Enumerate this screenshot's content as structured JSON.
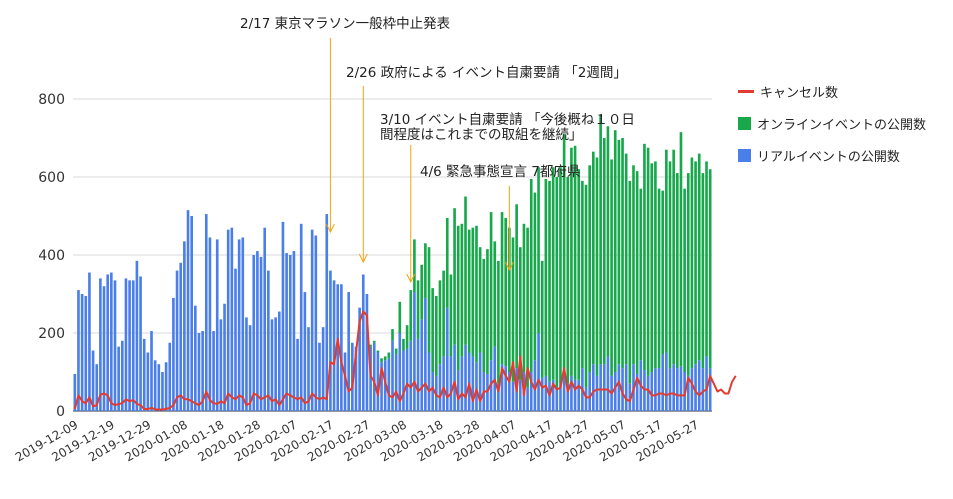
{
  "chart_data": {
    "type": "bar",
    "stacked": true,
    "y_axis": {
      "ylim": [
        0,
        900
      ],
      "ticks": [
        0,
        200,
        400,
        600,
        800
      ]
    },
    "x_axis": {
      "start_date": "2019-12-09",
      "tick_labels": [
        "2019-12-09",
        "2019-12-19",
        "2019-12-29",
        "2020-01-08",
        "2020-01-18",
        "2020-01-28",
        "2020-02-07",
        "2020-02-17",
        "2020-02-27",
        "2020-03-08",
        "2020-03-18",
        "2020-03-28",
        "2020-04-07",
        "2020-04-17",
        "2020-04-27",
        "2020-05-07",
        "2020-05-17",
        "2020-05-27"
      ]
    },
    "grid": true,
    "legend_placement": "right",
    "series": [
      {
        "name": "リアルイベントの公開数",
        "kind": "bar",
        "color": "#4a7ee8",
        "values": [
          95,
          310,
          300,
          295,
          355,
          155,
          120,
          340,
          320,
          350,
          355,
          335,
          165,
          180,
          340,
          335,
          335,
          385,
          345,
          185,
          150,
          205,
          130,
          120,
          100,
          125,
          175,
          290,
          360,
          380,
          435,
          515,
          500,
          270,
          200,
          205,
          505,
          445,
          205,
          440,
          235,
          275,
          465,
          470,
          365,
          440,
          445,
          240,
          220,
          400,
          410,
          395,
          470,
          360,
          235,
          240,
          255,
          485,
          405,
          400,
          410,
          185,
          480,
          305,
          215,
          465,
          450,
          175,
          215,
          505,
          360,
          335,
          325,
          325,
          150,
          305,
          175,
          165,
          265,
          350,
          300,
          165,
          175,
          150,
          125,
          130,
          135,
          180,
          145,
          200,
          155,
          160,
          180,
          305,
          185,
          235,
          290,
          150,
          100,
          90,
          120,
          140,
          265,
          140,
          170,
          105,
          140,
          170,
          150,
          140,
          125,
          150,
          100,
          95,
          130,
          165,
          70,
          120,
          115,
          100,
          75,
          110,
          80,
          100,
          60,
          100,
          130,
          200,
          85,
          90,
          75,
          80,
          60,
          70,
          110,
          70,
          90,
          80,
          80,
          110,
          60,
          100,
          120,
          90,
          120,
          120,
          140,
          90,
          100,
          120,
          110,
          120,
          70,
          120,
          95,
          130,
          105,
          90,
          100,
          110,
          110,
          145,
          150,
          110,
          120,
          110,
          115,
          100,
          90,
          110,
          120,
          130,
          110,
          140,
          110
        ]
      },
      {
        "name": "オンラインイベントの公開数",
        "kind": "bar",
        "color": "#17a84b",
        "values": [
          0,
          0,
          0,
          0,
          0,
          0,
          0,
          0,
          0,
          0,
          0,
          0,
          0,
          0,
          0,
          0,
          0,
          0,
          0,
          0,
          0,
          0,
          0,
          0,
          0,
          0,
          0,
          0,
          0,
          0,
          0,
          0,
          0,
          0,
          0,
          0,
          0,
          0,
          0,
          0,
          0,
          0,
          0,
          0,
          0,
          0,
          0,
          0,
          0,
          0,
          0,
          0,
          0,
          0,
          0,
          0,
          0,
          0,
          0,
          0,
          0,
          0,
          0,
          0,
          0,
          0,
          0,
          0,
          0,
          0,
          0,
          0,
          0,
          0,
          0,
          0,
          0,
          0,
          0,
          0,
          0,
          5,
          5,
          5,
          10,
          10,
          15,
          30,
          15,
          80,
          30,
          60,
          130,
          135,
          150,
          140,
          140,
          270,
          215,
          205,
          215,
          220,
          230,
          210,
          350,
          370,
          340,
          380,
          315,
          330,
          350,
          270,
          290,
          320,
          380,
          270,
          315,
          390,
          380,
          370,
          370,
          420,
          340,
          380,
          410,
          495,
          430,
          425,
          300,
          505,
          515,
          545,
          540,
          555,
          600,
          530,
          585,
          600,
          540,
          480,
          520,
          530,
          545,
          560,
          640,
          580,
          590,
          555,
          620,
          575,
          590,
          540,
          520,
          510,
          520,
          440,
          580,
          585,
          535,
          530,
          460,
          420,
          520,
          530,
          550,
          500,
          600,
          470,
          520,
          540,
          520,
          530,
          500,
          500,
          510,
          530,
          570,
          510,
          430,
          500,
          540,
          550
        ]
      },
      {
        "name": "キャンセル数",
        "kind": "line",
        "color": "#e33b2e",
        "values": [
          5,
          40,
          25,
          20,
          35,
          12,
          15,
          42,
          45,
          40,
          20,
          15,
          18,
          20,
          30,
          25,
          28,
          18,
          15,
          5,
          5,
          8,
          4,
          4,
          4,
          5,
          8,
          15,
          35,
          40,
          30,
          30,
          25,
          20,
          15,
          25,
          50,
          28,
          20,
          18,
          25,
          20,
          45,
          35,
          30,
          40,
          35,
          15,
          20,
          45,
          40,
          30,
          35,
          40,
          25,
          30,
          15,
          30,
          45,
          40,
          35,
          30,
          35,
          20,
          25,
          45,
          35,
          30,
          35,
          30,
          125,
          120,
          185,
          125,
          90,
          50,
          60,
          150,
          230,
          255,
          245,
          90,
          75,
          40,
          110,
          75,
          40,
          35,
          50,
          25,
          45,
          70,
          60,
          75,
          50,
          60,
          70,
          50,
          60,
          40,
          35,
          60,
          35,
          45,
          75,
          30,
          45,
          35,
          70,
          25,
          55,
          25,
          50,
          50,
          70,
          80,
          50,
          110,
          90,
          75,
          125,
          50,
          140,
          40,
          110,
          75,
          55,
          80,
          60,
          65,
          40,
          70,
          55,
          60,
          110,
          50,
          75,
          55,
          65,
          55,
          35,
          35,
          50,
          55,
          55,
          55,
          55,
          45,
          60,
          75,
          45,
          30,
          25,
          55,
          85,
          65,
          55,
          55,
          40,
          40,
          45,
          45,
          40,
          45,
          45,
          40,
          40,
          40,
          85,
          70,
          50,
          40,
          50,
          55,
          90,
          70,
          50,
          55,
          45,
          45,
          75,
          90
        ]
      }
    ],
    "annotations": [
      {
        "text": "2/17 東京マラソン一般枠中止発表",
        "date": "2020-02-17",
        "y": 200
      },
      {
        "text": "2/26 政府による イベント自粛要請 「2週間」",
        "date": "2020-02-26",
        "y": 150
      },
      {
        "text": "3/10 イベント自粛要請 「今後概ね１０日",
        "text2": "間程度はこれまでの取組を継続」",
        "date": "2020-03-10",
        "y": 100
      },
      {
        "text": "4/6 緊急事態宣言 7都府県",
        "date": "2020-04-06",
        "y": 160
      }
    ],
    "annotation_color": "#f2a40e"
  }
}
